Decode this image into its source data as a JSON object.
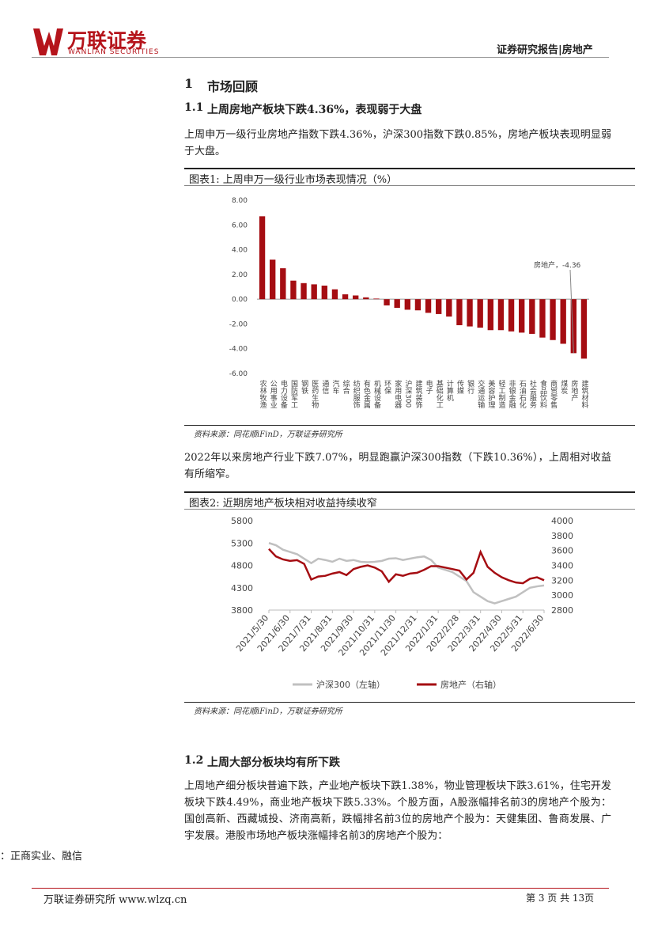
{
  "header": {
    "logo": "万联证券",
    "logo_en": "WANLIAN SECURITIES",
    "right": "证券研究报告|房地产"
  },
  "section1": {
    "number": "1",
    "title": "市场回顾"
  },
  "section1_1": {
    "number": "1.1",
    "title": "上周房地产板块下跌4.36%，表现弱于大盘",
    "p1": "上周申万一级行业房地产指数下跌4.36%，沪深300指数下跌0.85%，房地产板块表现明显弱于大盘。",
    "p2": "2022年以来房地产行业下跌7.07%，明显跑赢沪深300指数（下跌10.36%），上周相对收益有所缩窄。"
  },
  "figures": [
    {
      "label": "图表1:",
      "title": "上周申万一级行业市场表现情况（%）",
      "source": "资料来源：同花顺iFinD，万联证券研究所"
    },
    {
      "label": "图表2:",
      "title": "近期房地产板块相对收益持续收窄",
      "source": "资料来源：同花顺iFinD，万联证券研究所"
    }
  ],
  "section1_2": {
    "number": "1.2",
    "title": "上周大部分板块均有所下跌",
    "p1": "上周地产细分板块普遍下跌，产业地产板块下跌1.38%，物业管理板块下跌3.61%，住宅开发板块下跌4.49%，商业地产板块下跌5.33%。个股方面，A股涨幅排名前3的房地产个股为：国创高新、西藏城投、济南高新，跌幅排名前3位的房地产个股为：天健集团、鲁商发展、广宇发展。港股市场地产板块涨幅排名前3的房地产个股为："
  },
  "fragment": "：正商实业、融信",
  "footer": {
    "left": "万联证券研究所 www.wlzq.cn",
    "right": "第 3 页 共 13页"
  },
  "chart_data": [
    {
      "type": "bar",
      "color": "#a50d12",
      "categories": [
        "农林牧渔",
        "公用事业",
        "电力设备",
        "国防军工",
        "钢铁",
        "医药生物",
        "通信",
        "汽车",
        "综合",
        "纺织服饰",
        "有色金属",
        "机械设备",
        "环保",
        "家用电器",
        "沪深300",
        "建筑装饰",
        "电子",
        "基础化工",
        "计算机",
        "传媒",
        "银行",
        "交通运输",
        "美容护理",
        "轻工制造",
        "非银金融",
        "石油石化",
        "社会服务",
        "食品饮料",
        "商贸零售",
        "煤炭",
        "房地产",
        "建筑材料"
      ],
      "values": [
        6.7,
        3.2,
        2.5,
        1.5,
        1.3,
        1.2,
        1.1,
        0.8,
        0.4,
        0.3,
        0.15,
        0.05,
        -0.5,
        -0.7,
        -0.85,
        -0.9,
        -1.1,
        -1.2,
        -1.4,
        -2.1,
        -2.2,
        -2.3,
        -2.5,
        -2.5,
        -2.6,
        -2.7,
        -2.8,
        -3.1,
        -3.3,
        -3.6,
        -4.36,
        -4.8
      ],
      "ylim": [
        -6,
        8
      ],
      "yticks": [
        {
          "value": 8,
          "label": "8.00"
        },
        {
          "value": 6,
          "label": "6.00"
        },
        {
          "value": 4,
          "label": "4.00"
        },
        {
          "value": 2,
          "label": "2.00"
        },
        {
          "value": 0,
          "label": "0.00"
        },
        {
          "value": -2,
          "label": "-2.00"
        },
        {
          "value": -4,
          "label": "-4.00"
        },
        {
          "value": -6,
          "label": "-6.00"
        }
      ],
      "annotation": "房地产，-4.36"
    },
    {
      "type": "line",
      "categories": [
        "2021/5/30",
        null,
        null,
        "2021/6/30",
        null,
        null,
        "2021/7/31",
        null,
        null,
        "2021/8/31",
        null,
        null,
        "2021/9/30",
        null,
        null,
        "2021/10/31",
        null,
        null,
        "2021/11/30",
        null,
        null,
        "2021/12/31",
        null,
        null,
        "2022/1/31",
        null,
        null,
        "2022/2/28",
        null,
        null,
        "2022/3/31",
        null,
        null,
        "2022/4/30",
        null,
        null,
        "2022/5/31",
        null,
        null,
        "2022/6/30"
      ],
      "ylim": [
        3800,
        5800
      ],
      "yticks": [
        3800,
        4300,
        4800,
        5300,
        5800
      ],
      "y2lim": [
        2800,
        4000
      ],
      "y2ticks": [
        2800,
        3000,
        3200,
        3400,
        3600,
        3800,
        4000
      ],
      "series": [
        {
          "name": "沪深300（左轴）",
          "color": "#c0c0c0",
          "values": [
            5300,
            5250,
            5150,
            5100,
            5050,
            4950,
            4850,
            4950,
            4920,
            4880,
            4950,
            4900,
            4920,
            4880,
            4870,
            4880,
            4900,
            4950,
            4960,
            4920,
            4950,
            4980,
            5000,
            4920,
            4750,
            4700,
            4650,
            4550,
            4450,
            4200,
            4100,
            4000,
            3950,
            4000,
            4050,
            4100,
            4200,
            4300,
            4330,
            4350
          ]
        },
        {
          "name": "房地产（右轴）",
          "color": "#a50d12",
          "axis": "y2",
          "values": [
            3620,
            3520,
            3480,
            3460,
            3470,
            3420,
            3210,
            3250,
            3260,
            3290,
            3310,
            3270,
            3350,
            3380,
            3400,
            3370,
            3320,
            3180,
            3280,
            3260,
            3290,
            3300,
            3340,
            3390,
            3390,
            3370,
            3350,
            3330,
            3210,
            3300,
            3580,
            3380,
            3300,
            3240,
            3200,
            3170,
            3160,
            3220,
            3240,
            3200
          ]
        }
      ]
    }
  ]
}
